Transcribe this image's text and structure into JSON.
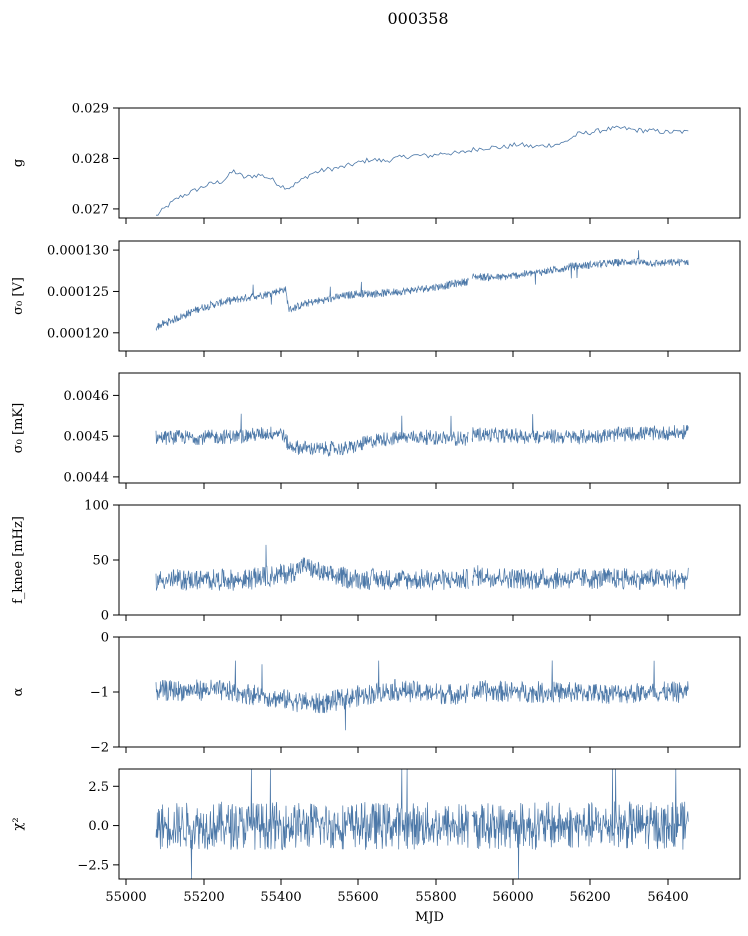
{
  "figure": {
    "title": "000358"
  },
  "colors": {
    "series": "#4c78a8"
  },
  "chart_data": [
    {
      "type": "line",
      "ylabel": "g",
      "xlim": [
        54960,
        56640
      ],
      "ylim": [
        0.02682,
        0.029
      ],
      "yticks": [
        "0.029",
        "0.028",
        "0.027"
      ],
      "ytick_values": [
        0.029,
        0.028,
        0.027
      ],
      "series": [
        {
          "values": [
            [
              55060,
              0.02686
            ],
            [
              55090,
              0.02705
            ],
            [
              55120,
              0.02722
            ],
            [
              55160,
              0.02735
            ],
            [
              55200,
              0.02748
            ],
            [
              55240,
              0.02755
            ],
            [
              55270,
              0.02775
            ],
            [
              55300,
              0.02762
            ],
            [
              55340,
              0.02768
            ],
            [
              55370,
              0.0276
            ],
            [
              55400,
              0.02745
            ],
            [
              55420,
              0.02742
            ],
            [
              55450,
              0.02755
            ],
            [
              55480,
              0.0277
            ],
            [
              55520,
              0.02778
            ],
            [
              55560,
              0.02782
            ],
            [
              55600,
              0.0279
            ],
            [
              55640,
              0.02798
            ],
            [
              55680,
              0.02795
            ],
            [
              55720,
              0.02802
            ],
            [
              55760,
              0.02806
            ],
            [
              55800,
              0.02805
            ],
            [
              55840,
              0.02811
            ],
            [
              55880,
              0.0281
            ],
            [
              55920,
              0.02818
            ],
            [
              55960,
              0.02822
            ],
            [
              56000,
              0.02822
            ],
            [
              56040,
              0.02828
            ],
            [
              56080,
              0.02823
            ],
            [
              56120,
              0.02826
            ],
            [
              56160,
              0.0283
            ],
            [
              56200,
              0.02848
            ],
            [
              56240,
              0.02852
            ],
            [
              56280,
              0.02858
            ],
            [
              56320,
              0.0286
            ],
            [
              56360,
              0.02856
            ],
            [
              56400,
              0.02855
            ],
            [
              56440,
              0.02852
            ],
            [
              56480,
              0.02853
            ],
            [
              56500,
              0.02852
            ]
          ]
        }
      ]
    },
    {
      "type": "line",
      "ylabel": "σ₀ [V]",
      "xlim": [
        54960,
        56640
      ],
      "ylim": [
        0.0001178,
        0.0001311
      ],
      "yticks": [
        "0.000130",
        "0.000125",
        "0.000120"
      ],
      "ytick_values": [
        0.00013,
        0.000125,
        0.00012
      ],
      "series": [
        {
          "values": [
            [
              55060,
              0.0001207
            ],
            [
              55120,
              0.0001218
            ],
            [
              55180,
              0.000123
            ],
            [
              55240,
              0.0001237
            ],
            [
              55300,
              0.0001242
            ],
            [
              55360,
              0.0001247
            ],
            [
              55410,
              0.0001253
            ],
            [
              55420,
              0.0001228
            ],
            [
              55470,
              0.0001236
            ],
            [
              55540,
              0.0001242
            ],
            [
              55600,
              0.0001247
            ],
            [
              55680,
              0.0001248
            ],
            [
              55760,
              0.0001252
            ],
            [
              55840,
              0.0001257
            ],
            [
              55900,
              0.0001262
            ],
            [
              55920,
              0.0001268
            ],
            [
              55990,
              0.0001267
            ],
            [
              56060,
              0.0001271
            ],
            [
              56140,
              0.0001276
            ],
            [
              56180,
              0.000128
            ],
            [
              56260,
              0.0001283
            ],
            [
              56340,
              0.0001286
            ],
            [
              56420,
              0.0001284
            ],
            [
              56500,
              0.0001286
            ]
          ]
        }
      ],
      "noise_amplitude": 4.5e-07
    },
    {
      "type": "line",
      "ylabel": "σ₀ [mK]",
      "xlim": [
        54960,
        56640
      ],
      "ylim": [
        0.004385,
        0.004655
      ],
      "yticks": [
        "0.0046",
        "0.0045",
        "0.0044"
      ],
      "ytick_values": [
        0.0046,
        0.0045,
        0.0044
      ],
      "series": [
        {
          "values": [
            [
              55060,
              0.004497
            ],
            [
              55200,
              0.004497
            ],
            [
              55300,
              0.004501
            ],
            [
              55400,
              0.00451
            ],
            [
              55420,
              0.004475
            ],
            [
              55500,
              0.004468
            ],
            [
              55580,
              0.00447
            ],
            [
              55660,
              0.004492
            ],
            [
              55760,
              0.004498
            ],
            [
              55900,
              0.004494
            ],
            [
              55920,
              0.004505
            ],
            [
              56050,
              0.0045
            ],
            [
              56200,
              0.004498
            ],
            [
              56350,
              0.004506
            ],
            [
              56500,
              0.004509
            ]
          ]
        }
      ],
      "noise_amplitude": 1.7e-05
    },
    {
      "type": "line",
      "ylabel": "f_knee [mHz]",
      "xlim": [
        54960,
        56640
      ],
      "ylim": [
        0,
        100
      ],
      "yticks": [
        "100",
        "50",
        "0"
      ],
      "ytick_values": [
        100,
        50,
        0
      ],
      "series": [
        {
          "values": [
            [
              55060,
              32
            ],
            [
              55200,
              32
            ],
            [
              55300,
              32
            ],
            [
              55420,
              38
            ],
            [
              55460,
              45
            ],
            [
              55520,
              36
            ],
            [
              55600,
              33
            ],
            [
              55800,
              32
            ],
            [
              55900,
              32
            ],
            [
              55920,
              36
            ],
            [
              56050,
              33
            ],
            [
              56200,
              33
            ],
            [
              56350,
              33
            ],
            [
              56500,
              33
            ]
          ]
        }
      ],
      "noise_amplitude": 9
    },
    {
      "type": "line",
      "ylabel": "α",
      "xlim": [
        54960,
        56640
      ],
      "ylim": [
        -2,
        0
      ],
      "yticks": [
        "0",
        "−1",
        "−2"
      ],
      "ytick_values": [
        0,
        -1,
        -2
      ],
      "series": [
        {
          "values": [
            [
              55060,
              -0.98
            ],
            [
              55200,
              -0.96
            ],
            [
              55300,
              -1.02
            ],
            [
              55420,
              -1.15
            ],
            [
              55500,
              -1.22
            ],
            [
              55600,
              -1.08
            ],
            [
              55700,
              -0.96
            ],
            [
              55800,
              -1.02
            ],
            [
              55900,
              -1.04
            ],
            [
              55920,
              -0.98
            ],
            [
              56100,
              -1.0
            ],
            [
              56300,
              -1.02
            ],
            [
              56500,
              -1.0
            ]
          ]
        }
      ],
      "noise_amplitude": 0.18
    },
    {
      "type": "line",
      "ylabel": "χ²",
      "xlabel": "MJD",
      "xlim": [
        54960,
        56640
      ],
      "ylim": [
        -3.4,
        3.6
      ],
      "yticks": [
        "2.5",
        "0.0",
        "−2.5"
      ],
      "ytick_values": [
        2.5,
        0.0,
        -2.5
      ],
      "xticks": [
        "55000",
        "55200",
        "55400",
        "55600",
        "55800",
        "56000",
        "56200",
        "56400"
      ],
      "xtick_values": [
        55000,
        55200,
        55400,
        55600,
        55800,
        56000,
        56200,
        56400
      ],
      "series": [
        {
          "values": [
            [
              55060,
              0.0
            ],
            [
              55900,
              0.0
            ],
            [
              55920,
              0.0
            ],
            [
              56500,
              0.0
            ]
          ]
        }
      ],
      "noise_amplitude": 1.4
    }
  ]
}
